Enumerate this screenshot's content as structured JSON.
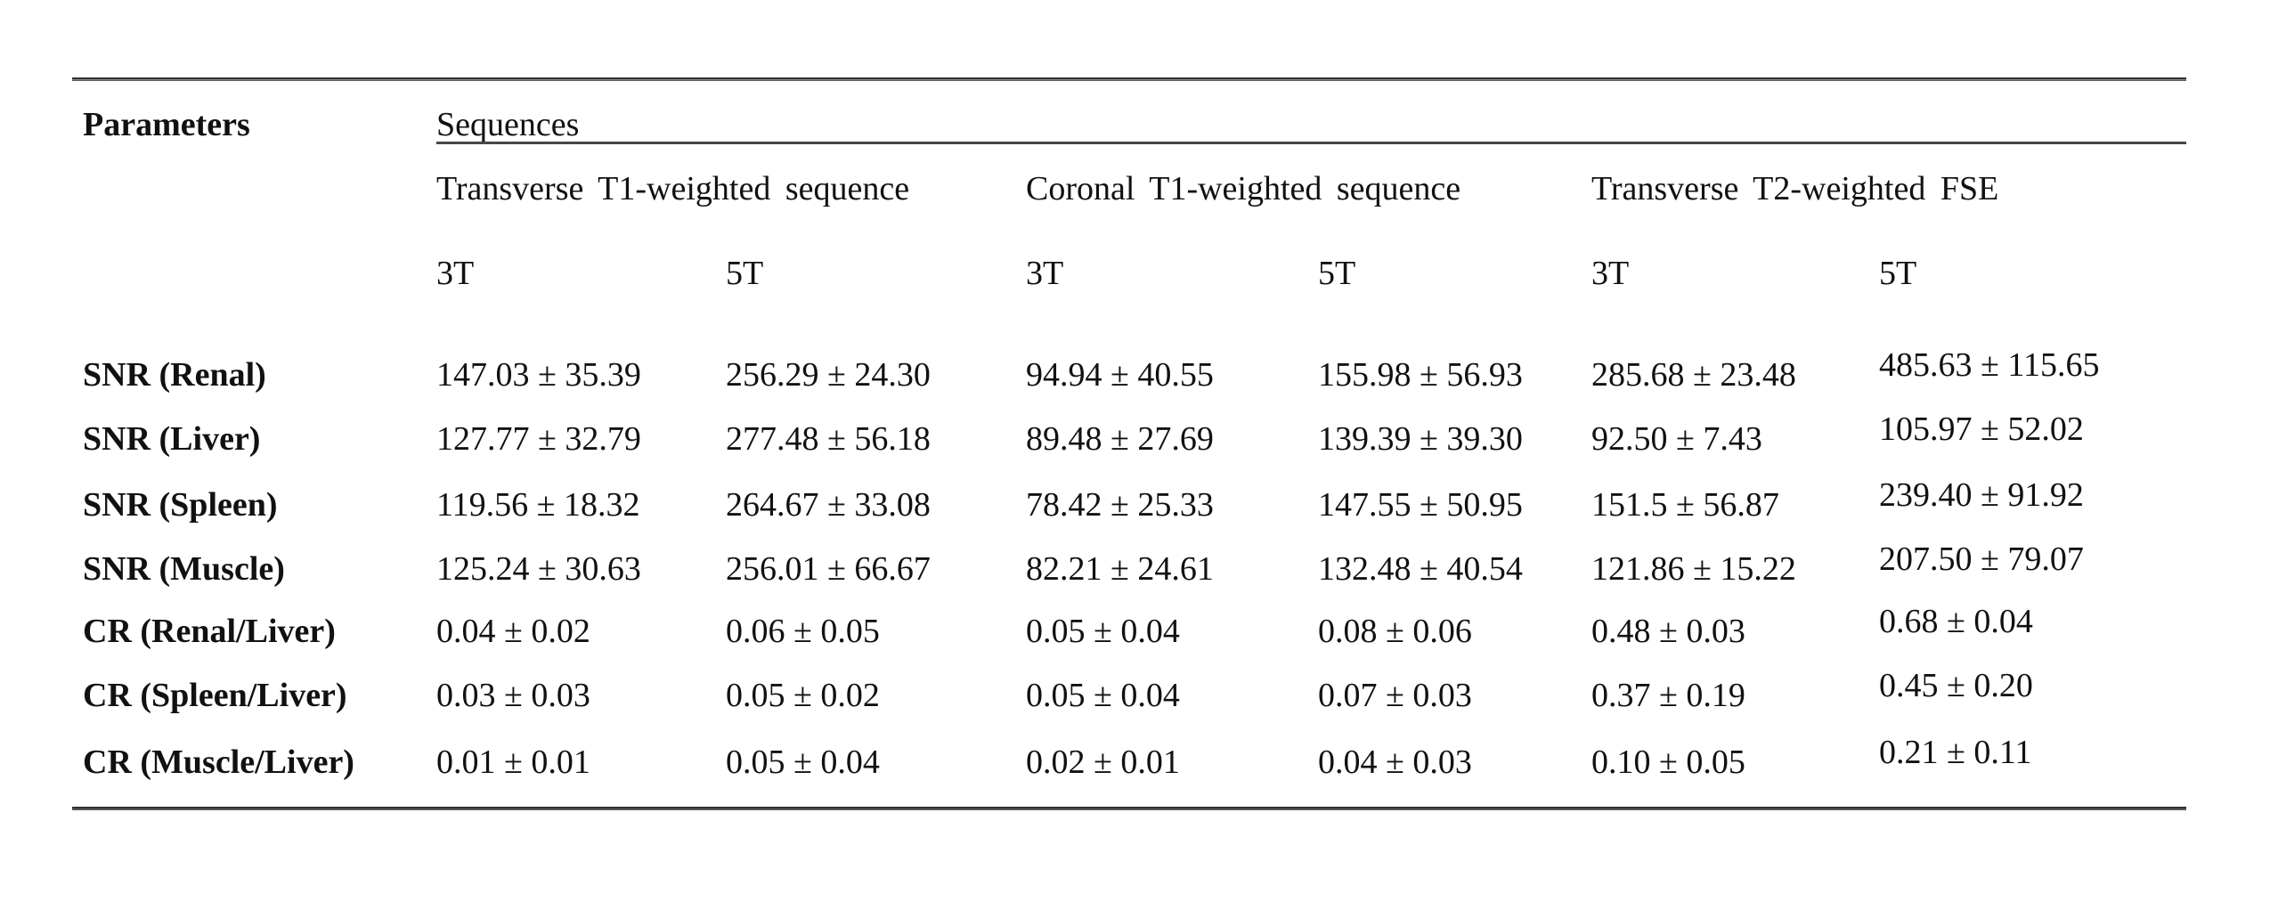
{
  "table": {
    "col_param_header": "Parameters",
    "group_header": "Sequences",
    "sequence_groups": [
      {
        "label": "Transverse T1-weighted sequence"
      },
      {
        "label": "Coronal T1-weighted sequence"
      },
      {
        "label": "Transverse T2-weighted FSE"
      }
    ],
    "field_headers": [
      "3T",
      "5T",
      "3T",
      "5T",
      "3T",
      "5T"
    ],
    "rows": [
      {
        "label": "SNR (Renal)",
        "values": [
          "147.03 ± 35.39",
          "256.29 ± 24.30",
          "94.94 ± 40.55",
          "155.98 ± 56.93",
          "285.68 ± 23.48",
          "485.63 ± 115.65"
        ]
      },
      {
        "label": "SNR (Liver)",
        "values": [
          "127.77 ± 32.79",
          "277.48 ± 56.18",
          "89.48 ± 27.69",
          "139.39 ± 39.30",
          "92.50 ± 7.43",
          "105.97 ± 52.02"
        ]
      },
      {
        "label": "SNR (Spleen)",
        "values": [
          "119.56 ± 18.32",
          "264.67 ± 33.08",
          "78.42 ± 25.33",
          "147.55 ± 50.95",
          "151.5 ± 56.87",
          "239.40 ± 91.92"
        ]
      },
      {
        "label": "SNR (Muscle)",
        "values": [
          "125.24 ± 30.63",
          "256.01 ± 66.67",
          "82.21 ± 24.61",
          "132.48 ± 40.54",
          "121.86 ± 15.22",
          "207.50 ± 79.07"
        ]
      },
      {
        "label": "CR (Renal/Liver)",
        "values": [
          "0.04 ± 0.02",
          "0.06 ± 0.05",
          "0.05 ± 0.04",
          "0.08 ± 0.06",
          "0.48 ± 0.03",
          "0.68 ± 0.04"
        ]
      },
      {
        "label": "CR (Spleen/Liver)",
        "values": [
          "0.03 ± 0.03",
          "0.05 ± 0.02",
          "0.05 ± 0.04",
          "0.07 ± 0.03",
          "0.37 ± 0.19",
          "0.45 ± 0.20"
        ]
      },
      {
        "label": "CR (Muscle/Liver)",
        "values": [
          "0.01 ± 0.01",
          "0.05 ± 0.04",
          "0.02 ± 0.01",
          "0.04 ± 0.03",
          "0.10 ± 0.05",
          "0.21 ± 0.11"
        ]
      }
    ]
  }
}
